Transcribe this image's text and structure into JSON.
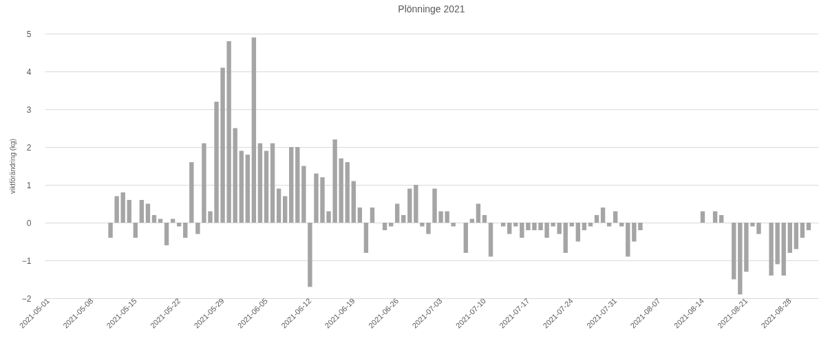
{
  "chart_data": {
    "type": "bar",
    "title": "Plönninge 2021",
    "ylabel": "viktförändring (kg)",
    "x": [
      "2021-05-11",
      "2021-05-12",
      "2021-05-13",
      "2021-05-14",
      "2021-05-15",
      "2021-05-16",
      "2021-05-17",
      "2021-05-18",
      "2021-05-19",
      "2021-05-20",
      "2021-05-21",
      "2021-05-22",
      "2021-05-23",
      "2021-05-24",
      "2021-05-25",
      "2021-05-26",
      "2021-05-27",
      "2021-05-28",
      "2021-05-29",
      "2021-05-30",
      "2021-05-31",
      "2021-06-01",
      "2021-06-02",
      "2021-06-03",
      "2021-06-04",
      "2021-06-05",
      "2021-06-06",
      "2021-06-07",
      "2021-06-08",
      "2021-06-09",
      "2021-06-10",
      "2021-06-11",
      "2021-06-12",
      "2021-06-13",
      "2021-06-14",
      "2021-06-15",
      "2021-06-16",
      "2021-06-17",
      "2021-06-18",
      "2021-06-19",
      "2021-06-20",
      "2021-06-21",
      "2021-06-22",
      "2021-06-23",
      "2021-06-24",
      "2021-06-25",
      "2021-06-26",
      "2021-06-27",
      "2021-06-28",
      "2021-06-29",
      "2021-06-30",
      "2021-07-01",
      "2021-07-02",
      "2021-07-03",
      "2021-07-04",
      "2021-07-05",
      "2021-07-06",
      "2021-07-07",
      "2021-07-08",
      "2021-07-09",
      "2021-07-10",
      "2021-07-11",
      "2021-07-12",
      "2021-07-13",
      "2021-07-14",
      "2021-07-15",
      "2021-07-16",
      "2021-07-17",
      "2021-07-18",
      "2021-07-19",
      "2021-07-20",
      "2021-07-21",
      "2021-07-22",
      "2021-07-23",
      "2021-07-24",
      "2021-07-25",
      "2021-07-26",
      "2021-07-27",
      "2021-07-28",
      "2021-07-29",
      "2021-07-30",
      "2021-07-31",
      "2021-08-01",
      "2021-08-02",
      "2021-08-03",
      "2021-08-04",
      "2021-08-05",
      "2021-08-06",
      "2021-08-07",
      "2021-08-08",
      "2021-08-09",
      "2021-08-10",
      "2021-08-11",
      "2021-08-12",
      "2021-08-13",
      "2021-08-14",
      "2021-08-15",
      "2021-08-16",
      "2021-08-17",
      "2021-08-18",
      "2021-08-19",
      "2021-08-20",
      "2021-08-21",
      "2021-08-22",
      "2021-08-23",
      "2021-08-24",
      "2021-08-25",
      "2021-08-26",
      "2021-08-27",
      "2021-08-28",
      "2021-08-29",
      "2021-08-30",
      "2021-08-31"
    ],
    "values": [
      -0.4,
      0.7,
      0.8,
      0.6,
      -0.4,
      0.6,
      0.5,
      0.2,
      0.1,
      -0.6,
      0.1,
      -0.1,
      -0.4,
      1.6,
      -0.3,
      2.1,
      0.3,
      3.2,
      4.1,
      4.8,
      2.5,
      1.9,
      1.8,
      4.9,
      2.1,
      1.9,
      2.1,
      0.9,
      0.7,
      2.0,
      2.0,
      1.5,
      -1.7,
      1.3,
      1.2,
      0.3,
      2.2,
      1.7,
      1.6,
      1.1,
      0.4,
      -0.8,
      0.4,
      null,
      -0.2,
      -0.1,
      0.5,
      0.2,
      0.9,
      1.0,
      -0.1,
      -0.3,
      0.9,
      0.3,
      0.3,
      -0.1,
      null,
      -0.8,
      0.1,
      0.5,
      0.2,
      -0.9,
      null,
      -0.1,
      -0.3,
      -0.1,
      -0.4,
      -0.2,
      -0.2,
      -0.2,
      -0.4,
      -0.1,
      -0.3,
      -0.8,
      -0.1,
      -0.5,
      -0.2,
      -0.1,
      0.2,
      0.4,
      -0.1,
      0.3,
      -0.1,
      -0.9,
      -0.5,
      -0.2,
      null,
      null,
      null,
      null,
      null,
      null,
      null,
      null,
      null,
      0.3,
      null,
      0.3,
      0.2,
      null,
      -1.5,
      -1.9,
      -1.3,
      -0.1,
      -0.3,
      null,
      -1.4,
      -1.1,
      -1.4,
      -0.8,
      -0.7,
      -0.4,
      -0.2
    ],
    "color": "#a5a5a5",
    "xlim": [
      "2021-05-01",
      "2021-09-01"
    ],
    "xticks": [
      "2021-05-01",
      "2021-05-08",
      "2021-05-15",
      "2021-05-22",
      "2021-05-29",
      "2021-06-05",
      "2021-06-12",
      "2021-06-19",
      "2021-06-26",
      "2021-07-03",
      "2021-07-10",
      "2021-07-17",
      "2021-07-24",
      "2021-07-31",
      "2021-08-07",
      "2021-08-14",
      "2021-08-21",
      "2021-08-28"
    ],
    "ylim": [
      -2,
      5
    ],
    "yticks": [
      -2,
      -1,
      0,
      1,
      2,
      3,
      4,
      5
    ],
    "grid": "y"
  }
}
